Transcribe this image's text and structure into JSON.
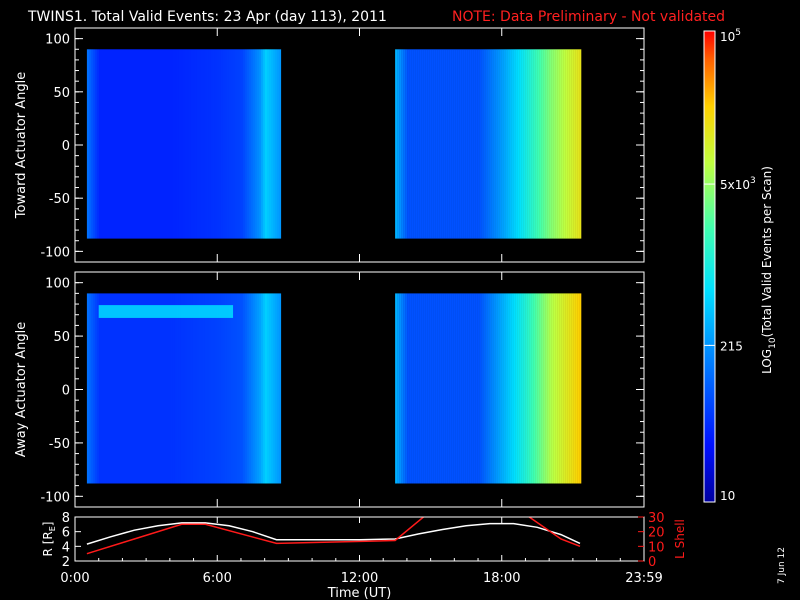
{
  "header": {
    "title": "TWINS1. Total Valid Events: 23 Apr (day 113), 2011",
    "note": "NOTE: Data Preliminary - Not validated"
  },
  "footer": {
    "date_stamp": "7 Jun 12"
  },
  "colors": {
    "background": "#000000",
    "note_red": "#ff2020",
    "axis_white": "#ffffff",
    "lshell_red": "#ff1a1a",
    "colorbar_low": "#0000a0",
    "colorbar_high": "#ff0000"
  },
  "chart_data": [
    {
      "type": "heatmap",
      "name": "toward-panel",
      "ylabel": "Toward Actuator Angle",
      "ylim": [
        -110,
        110
      ],
      "yticks": [
        "100",
        "50",
        "0",
        "-50",
        "-100"
      ],
      "time_segments_utc": [
        [
          "0:30",
          "8:40"
        ],
        [
          "13:30",
          "21:20"
        ]
      ],
      "angle_range": [
        -88,
        90
      ],
      "colorbar_log10_range": [
        1,
        5
      ],
      "value_profile_log10": [
        {
          "t": "0:30",
          "v": 2.1
        },
        {
          "t": "1:00",
          "v": 1.6
        },
        {
          "t": "4:00",
          "v": 1.6
        },
        {
          "t": "6:00",
          "v": 1.7
        },
        {
          "t": "7:00",
          "v": 1.8
        },
        {
          "t": "7:45",
          "v": 2.3
        },
        {
          "t": "8:00",
          "v": 2.7
        },
        {
          "t": "8:40",
          "v": 2.3
        },
        {
          "t": "13:30",
          "v": 2.5
        },
        {
          "t": "14:00",
          "v": 1.9
        },
        {
          "t": "17:00",
          "v": 1.9
        },
        {
          "t": "18:00",
          "v": 2.4
        },
        {
          "t": "19:00",
          "v": 3.0
        },
        {
          "t": "20:00",
          "v": 3.6
        },
        {
          "t": "21:20",
          "v": 4.2
        }
      ]
    },
    {
      "type": "heatmap",
      "name": "away-panel",
      "ylabel": "Away Actuator Angle",
      "ylim": [
        -110,
        110
      ],
      "yticks": [
        "100",
        "50",
        "0",
        "-50",
        "-100"
      ],
      "time_segments_utc": [
        [
          "0:30",
          "8:40"
        ],
        [
          "13:30",
          "21:20"
        ]
      ],
      "angle_range": [
        -88,
        90
      ],
      "colorbar_log10_range": [
        1,
        5
      ],
      "value_profile_log10": [
        {
          "t": "0:30",
          "v": 2.1
        },
        {
          "t": "1:00",
          "v": 1.7
        },
        {
          "t": "4:00",
          "v": 1.7
        },
        {
          "t": "6:00",
          "v": 1.8
        },
        {
          "t": "7:00",
          "v": 1.9
        },
        {
          "t": "7:45",
          "v": 2.4
        },
        {
          "t": "8:00",
          "v": 2.7
        },
        {
          "t": "8:40",
          "v": 2.3
        },
        {
          "t": "13:30",
          "v": 2.5
        },
        {
          "t": "14:00",
          "v": 1.9
        },
        {
          "t": "17:00",
          "v": 1.9
        },
        {
          "t": "18:00",
          "v": 2.5
        },
        {
          "t": "19:00",
          "v": 3.1
        },
        {
          "t": "20:00",
          "v": 3.8
        },
        {
          "t": "21:20",
          "v": 4.4
        }
      ],
      "feature": {
        "label": "bright band near 75 deg",
        "t_range": [
          "1:00",
          "6:40"
        ],
        "angle": 73,
        "v": 2.8
      }
    },
    {
      "type": "line",
      "name": "orbit-panel",
      "xlabel": "Time (UT)",
      "xticks": [
        "0:00",
        "6:00",
        "12:00",
        "18:00",
        "23:59"
      ],
      "xlim_hours": [
        0,
        24
      ],
      "ylabel_left": "R [R",
      "ylabel_left_sub": "E",
      "ylabel_left_close": "]",
      "ylabel_right": "L Shell",
      "ylim_left": [
        2,
        8
      ],
      "yticks_left": [
        "8",
        "6",
        "4",
        "2"
      ],
      "ylim_right": [
        0,
        30
      ],
      "yticks_right": [
        "30",
        "20",
        "10",
        "0"
      ],
      "series": [
        {
          "name": "R",
          "axis": "left",
          "color": "#ffffff",
          "x_hours": [
            0.5,
            1.5,
            2.5,
            3.5,
            4.5,
            5.5,
            6.5,
            7.5,
            8.5,
            10,
            12,
            13.5,
            14.5,
            15.5,
            16.5,
            17.5,
            18.5,
            19.5,
            20.5,
            21.3
          ],
          "y": [
            4.3,
            5.3,
            6.2,
            6.8,
            7.2,
            7.2,
            6.8,
            6.0,
            4.9,
            4.9,
            4.9,
            5.0,
            5.7,
            6.3,
            6.8,
            7.1,
            7.1,
            6.6,
            5.6,
            4.4
          ]
        },
        {
          "name": "L Shell",
          "axis": "right",
          "color": "#ff1a1a",
          "x_hours": [
            0.5,
            2.5,
            4.5,
            5.5,
            8.5,
            13.5,
            15,
            18.8,
            20.5,
            21.3
          ],
          "y": [
            5,
            15,
            25,
            25,
            12,
            14,
            34,
            34,
            15,
            10
          ]
        }
      ]
    }
  ],
  "colorbar": {
    "label_main": "LOG",
    "label_sub": "10",
    "label_rest": "(Total Valid Events per Scan)",
    "ticks": [
      {
        "label": "10",
        "log10": 1
      },
      {
        "label": "215",
        "log10": 2.33
      },
      {
        "label": "5x10",
        "sup": "3",
        "log10": 3.7
      },
      {
        "label": "10",
        "sup": "5",
        "log10": 5
      }
    ]
  }
}
